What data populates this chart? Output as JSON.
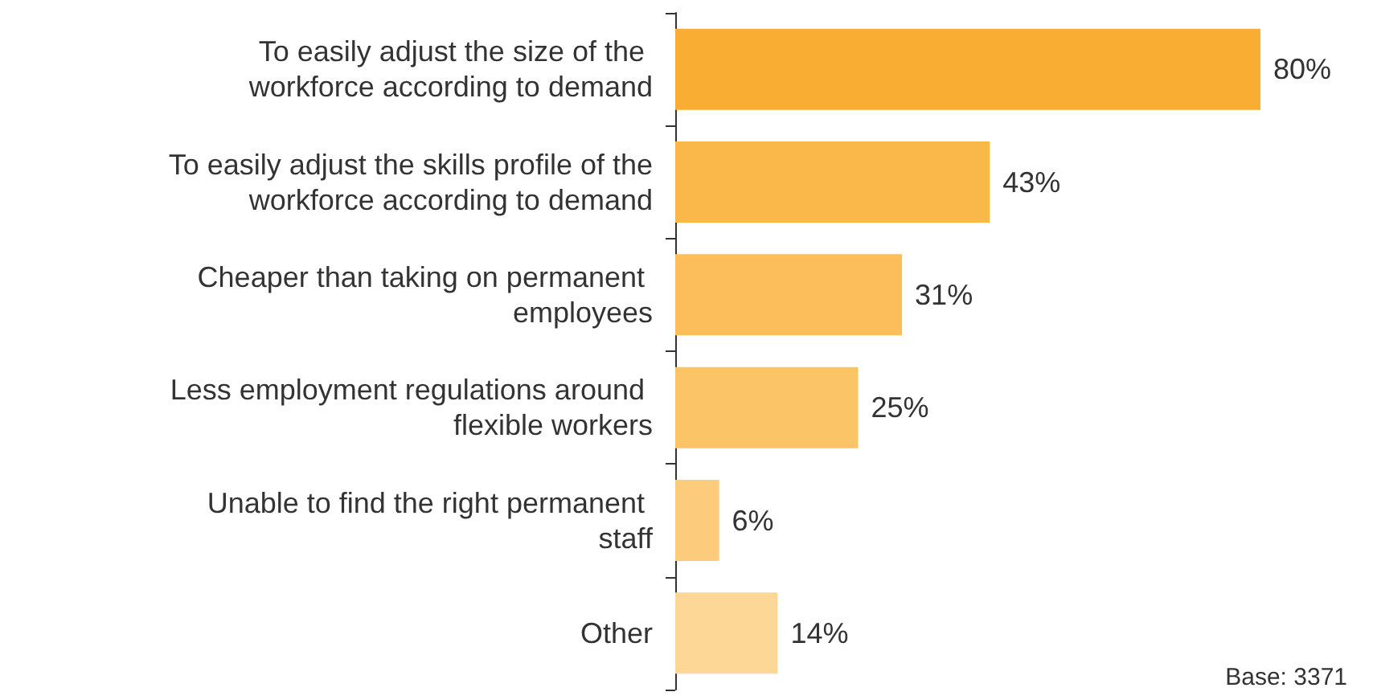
{
  "chart_data": {
    "type": "bar",
    "orientation": "horizontal",
    "categories": [
      "To easily adjust the size of the workforce according to demand",
      "To easily adjust the skills profile of the workforce according to demand",
      "Cheaper than taking on permanent employees",
      "Less employment regulations around flexible workers",
      "Unable to find the right permanent staff",
      "Other"
    ],
    "values": [
      80,
      43,
      31,
      25,
      6,
      14
    ],
    "colors": [
      "#f9ae33",
      "#fab84b",
      "#fbbe5a",
      "#fbc567",
      "#fccc7c",
      "#fcd795"
    ],
    "value_labels": [
      "80%",
      "43%",
      "31%",
      "25%",
      "6%",
      "14%"
    ],
    "annotations": [
      "Base: 3371"
    ]
  }
}
